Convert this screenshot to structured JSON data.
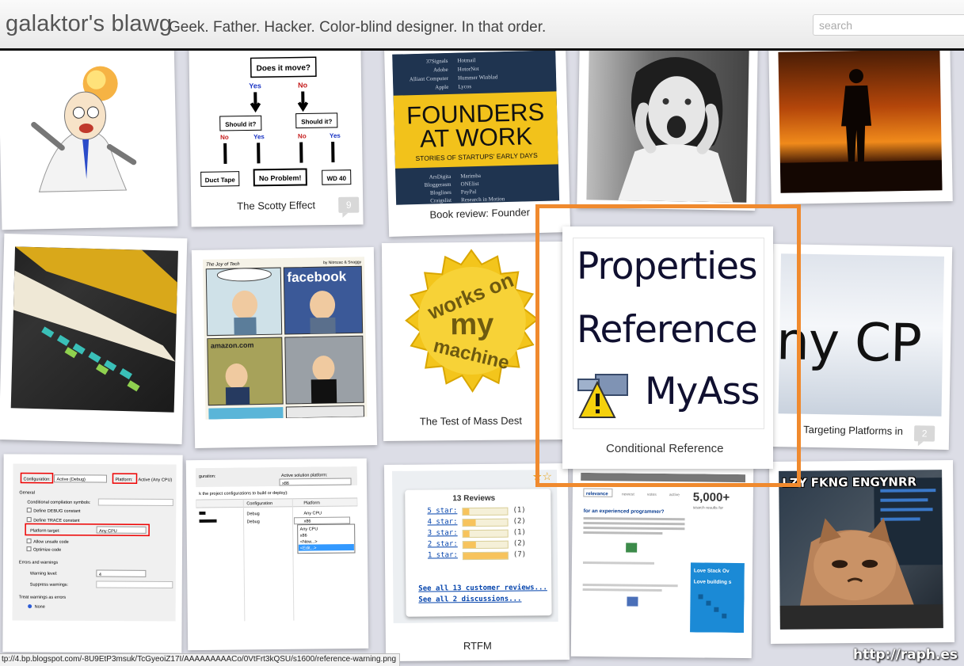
{
  "header": {
    "title": "galaktor's blawg",
    "tagline": "Geek. Father. Hacker. Color-blind designer. In that order.",
    "search_placeholder": "search"
  },
  "cards": [
    {
      "id": "scotty",
      "caption": "The Scotty Effect",
      "comments": "9"
    },
    {
      "id": "founders",
      "caption": "Book review: Founder"
    },
    {
      "id": "conditional",
      "caption": "Conditional Reference"
    },
    {
      "id": "mass",
      "caption": "The Test of Mass Dest"
    },
    {
      "id": "targeting",
      "caption": "Targeting Platforms in",
      "comments": "2"
    },
    {
      "id": "rtfm",
      "caption": "RTFM"
    }
  ],
  "thumbs": {
    "flow": {
      "q": "Does it move?",
      "yes": "Yes",
      "no": "No",
      "should": "Should it?",
      "duct": "Duct Tape",
      "noproblem": "No Problem!",
      "wd": "WD 40"
    },
    "founders": {
      "left": [
        "37Signals",
        "Adobe",
        "Alliant Computer",
        "Apple"
      ],
      "right": [
        "Hotmail",
        "HotorNot",
        "Hummer Winblad",
        "Lycos"
      ],
      "title1": "FOUNDERS",
      "title2": "AT WORK",
      "subtitle": "STORIES OF STARTUPS' EARLY DAYS",
      "bl": [
        "ArsDigita",
        "Bloggerasm",
        "Bloglines",
        "Craigslist"
      ],
      "br": [
        "Marimba",
        "ONElist",
        "PayPal",
        "Research in Motion"
      ]
    },
    "works": {
      "w1": "works on",
      "w2": "my",
      "w3": "machine"
    },
    "props": {
      "l1": "Properties",
      "l2": "Reference",
      "l3": "MyAss"
    },
    "cpu": {
      "text": "ny CP"
    },
    "comic": {
      "brand": "The Joy of Tech",
      "credit": "by Nitrozac & Snaggy",
      "fb": "facebook",
      "amazon": "amazon.com"
    },
    "config": {
      "configuration": "Configuration:",
      "active_debug": "Active (Debug)",
      "platform": "Platform:",
      "active_cpu": "Active (Any CPU)",
      "general": "General",
      "conditional": "Conditional compilation symbols:",
      "debug_const": "Define DEBUG constant",
      "trace_const": "Define TRACE constant",
      "platform_target": "Platform target:",
      "any_cpu": "Any CPU",
      "unsafe": "Allow unsafe code",
      "optimize": "Optimize code",
      "errors": "Errors and warnings",
      "warning_level": "Warning level:",
      "warning_value": "4",
      "suppress": "Suppress warnings:",
      "treat": "Treat warnings as errors",
      "none": "None"
    },
    "solution": {
      "config_label": "guration:",
      "platform_label": "Active solution platform:",
      "platform_value": "x86",
      "check": "k the project configurations to build or deploy):",
      "col1": "Configuration",
      "col2": "Platform",
      "r1c": "Debug",
      "r1p": "Any CPU",
      "r2c": "Debug",
      "r2p": "x86",
      "opts": [
        "Any CPU",
        "x86",
        "<New...>",
        "<Edit...>"
      ]
    },
    "reviews": {
      "title": "13 Reviews",
      "rows": [
        {
          "label": "5 star:",
          "count": "(1)",
          "fill": 0.14
        },
        {
          "label": "4 star:",
          "count": "(2)",
          "fill": 0.29
        },
        {
          "label": "3 star:",
          "count": "(1)",
          "fill": 0.14
        },
        {
          "label": "2 star:",
          "count": "(2)",
          "fill": 0.29
        },
        {
          "label": "1 star:",
          "count": "(7)",
          "fill": 1.0
        }
      ],
      "link1": "See all 13 customer reviews...",
      "link2": "See all 2 discussions..."
    },
    "so": {
      "tabs": [
        "relevance",
        "newest",
        "votes",
        "active"
      ],
      "count": "5,000+",
      "results": "search results for",
      "question": "for an experienced programmer?",
      "ad1": "Love Stack Ov",
      "ad2": "Love building s"
    },
    "cat": {
      "text": "LZY FKNG ENGYNRR"
    }
  },
  "statusbar": {
    "url": "tp://4.bp.blogspot.com/-8U9EtP3msuk/TcGyeoiZ17I/AAAAAAAAACo/0VtFrt3kQSU/s1600/reference-warning.png"
  },
  "watermark": "http://raph.es",
  "colors": {
    "highlight": "#f08a2e",
    "header_border": "#111111",
    "background": "#dcdde6"
  }
}
